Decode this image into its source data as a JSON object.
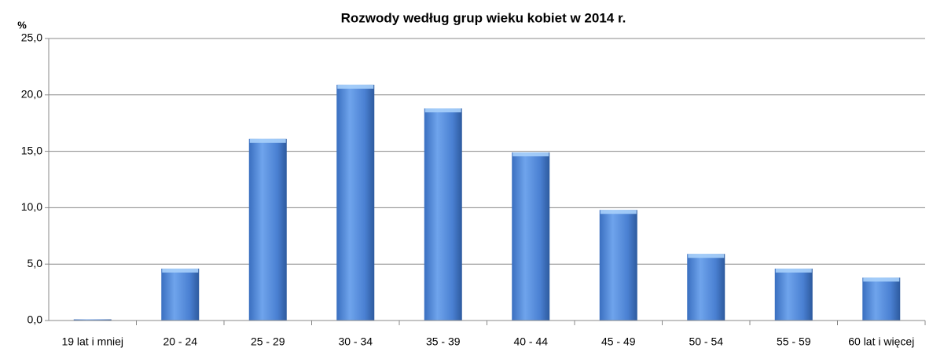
{
  "chart_data": {
    "type": "bar",
    "title": "Rozwody według grup wieku kobiet w 2014 r.",
    "y_label": "%",
    "categories": [
      "19 lat i mniej",
      "20 - 24",
      "25 - 29",
      "30 - 34",
      "35 - 39",
      "40 - 44",
      "45 - 49",
      "50 - 54",
      "55 - 59",
      "60 lat i więcej"
    ],
    "values": [
      0.1,
      4.6,
      16.1,
      20.9,
      18.8,
      14.9,
      9.8,
      5.9,
      4.6,
      3.8
    ],
    "color": "#4f86d6",
    "ylim": [
      0,
      25
    ],
    "yticks": [
      {
        "value": 0,
        "label": "0,0"
      },
      {
        "value": 5,
        "label": "5,0"
      },
      {
        "value": 10,
        "label": "10,0"
      },
      {
        "value": 15,
        "label": "15,0"
      },
      {
        "value": 20,
        "label": "20,0"
      },
      {
        "value": 25,
        "label": "25,0"
      }
    ],
    "grid": true
  }
}
